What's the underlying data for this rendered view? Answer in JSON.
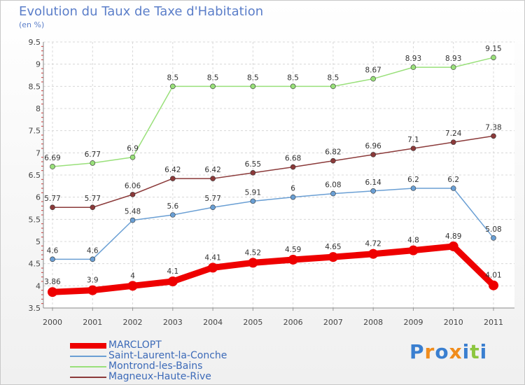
{
  "header": {
    "title": "Evolution du Taux de Taxe d'Habitation",
    "subtitle": "(en %)"
  },
  "chart_data": {
    "type": "line",
    "title": "Evolution du Taux de Taxe d'Habitation",
    "ylabel": "(en %)",
    "xlabel": "",
    "x": [
      2000,
      2001,
      2002,
      2003,
      2004,
      2005,
      2006,
      2007,
      2008,
      2009,
      2010,
      2011
    ],
    "ylim": [
      3.5,
      9.5
    ],
    "yticks": [
      3.5,
      4,
      4.5,
      5,
      5.5,
      6,
      6.5,
      7,
      7.5,
      8,
      8.5,
      9,
      9.5
    ],
    "grid": true,
    "series": [
      {
        "name": "MARCLOPT",
        "color": "#ee0000",
        "emphasis": true,
        "values": [
          3.86,
          3.9,
          4,
          4.1,
          4.41,
          4.52,
          4.59,
          4.65,
          4.72,
          4.8,
          4.89,
          4.01
        ]
      },
      {
        "name": "Saint-Laurent-la-Conche",
        "color": "#6a9fd4",
        "emphasis": false,
        "values": [
          4.6,
          4.6,
          5.48,
          5.6,
          5.77,
          5.91,
          6,
          6.08,
          6.14,
          6.2,
          6.2,
          5.08
        ]
      },
      {
        "name": "Montrond-les-Bains",
        "color": "#99e07a",
        "emphasis": false,
        "values": [
          6.69,
          6.77,
          6.9,
          8.5,
          8.5,
          8.5,
          8.5,
          8.5,
          8.67,
          8.93,
          8.93,
          9.15
        ]
      },
      {
        "name": "Magneux-Haute-Rive",
        "color": "#8b3a3a",
        "emphasis": false,
        "values": [
          5.77,
          5.77,
          6.06,
          6.42,
          6.42,
          6.55,
          6.68,
          6.82,
          6.96,
          7.1,
          7.24,
          7.38
        ]
      }
    ]
  },
  "legend": {
    "items": [
      {
        "label": "MARCLOPT",
        "color": "#ee0000"
      },
      {
        "label": "Saint-Laurent-la-Conche",
        "color": "#6a9fd4"
      },
      {
        "label": "Montrond-les-Bains",
        "color": "#99e07a"
      },
      {
        "label": "Magneux-Haute-Rive",
        "color": "#8b3a3a"
      }
    ]
  },
  "logo": {
    "text": "Proxiti",
    "letter_colors": [
      "#3a7fd0",
      "#f08c1c",
      "#3a7fd0",
      "#f08c1c",
      "#3a7fd0",
      "#8cc63f",
      "#3a7fd0"
    ]
  }
}
